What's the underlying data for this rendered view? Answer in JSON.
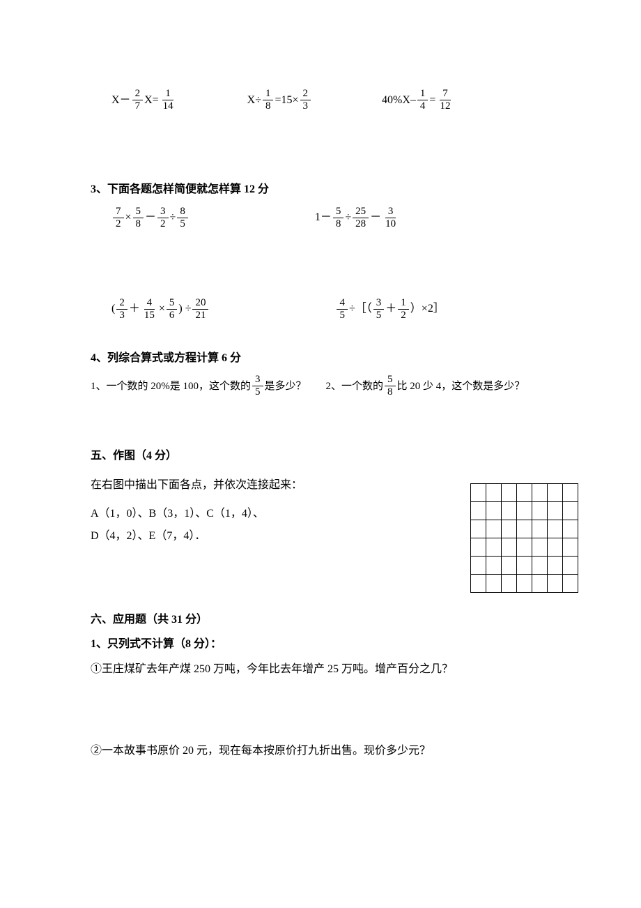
{
  "eq_row1": {
    "a": {
      "lead": "X－",
      "f1n": "2",
      "f1d": "7",
      "mid": "X=",
      "f2n": "1",
      "f2d": "14"
    },
    "b": {
      "lead": "X÷",
      "f1n": "1",
      "f1d": "8",
      "mid": "=15×",
      "f2n": "2",
      "f2d": "3"
    },
    "c": {
      "lead": "40%X–",
      "f1n": "1",
      "f1d": "4",
      "mid": "=",
      "f2n": "7",
      "f2d": "12"
    }
  },
  "section3": "3、下面各题怎样简便就怎样算 12 分",
  "eq_row2": {
    "a": {
      "f1n": "7",
      "f1d": "2",
      "s1": "×",
      "f2n": "5",
      "f2d": "8",
      "s2": "－",
      "f3n": "3",
      "f3d": "2",
      "s3": "÷",
      "f4n": "8",
      "f4d": "5"
    },
    "b": {
      "lead": "1－",
      "f1n": "5",
      "f1d": "8",
      "s1": "÷",
      "f2n": "25",
      "f2d": "28",
      "s2": "－",
      "f3n": "3",
      "f3d": "10"
    }
  },
  "eq_row3": {
    "a": {
      "open": "(",
      "f1n": "2",
      "f1d": "3",
      "s1": "＋",
      "f2n": "4",
      "f2d": "15",
      "s2": "×",
      "f3n": "5",
      "f3d": "6",
      "close": ") ÷",
      "f4n": "20",
      "f4d": "21"
    },
    "b": {
      "f1n": "4",
      "f1d": "5",
      "s1": "÷［（",
      "f2n": "3",
      "f2d": "5",
      "s2": "＋",
      "f3n": "1",
      "f3d": "2",
      "close": "）×2］"
    }
  },
  "section4": "4、列综合算式或方程计算 6 分",
  "wp1": {
    "pre": "1、一个数的 20%是 100，这个数的",
    "fn": "3",
    "fd": "5",
    "post": "是多少？"
  },
  "wp2": {
    "pre": "2、一个数的",
    "fn": "5",
    "fd": "8",
    "post": "比 20 少 4，这个数是多少？"
  },
  "section5": "五、作图（4 分）",
  "plot_intro": "在右图中描出下面各点，并依次连接起来：",
  "points_l1": "A（1，0）、B（3，1）、C（1，4）、",
  "points_l2": "D（4，2）、E（7，4）．",
  "section6": "六、应用题（共 31 分）",
  "section6_1": "1、只列式不计算（8 分）：",
  "q1": "①王庄煤矿去年产煤 250 万吨，今年比去年增产 25 万吨。增产百分之几？",
  "q2": "②一本故事书原价 20 元，现在每本按原价打九折出售。现价多少元？",
  "grid": {
    "rows": 6,
    "cols": 7
  }
}
